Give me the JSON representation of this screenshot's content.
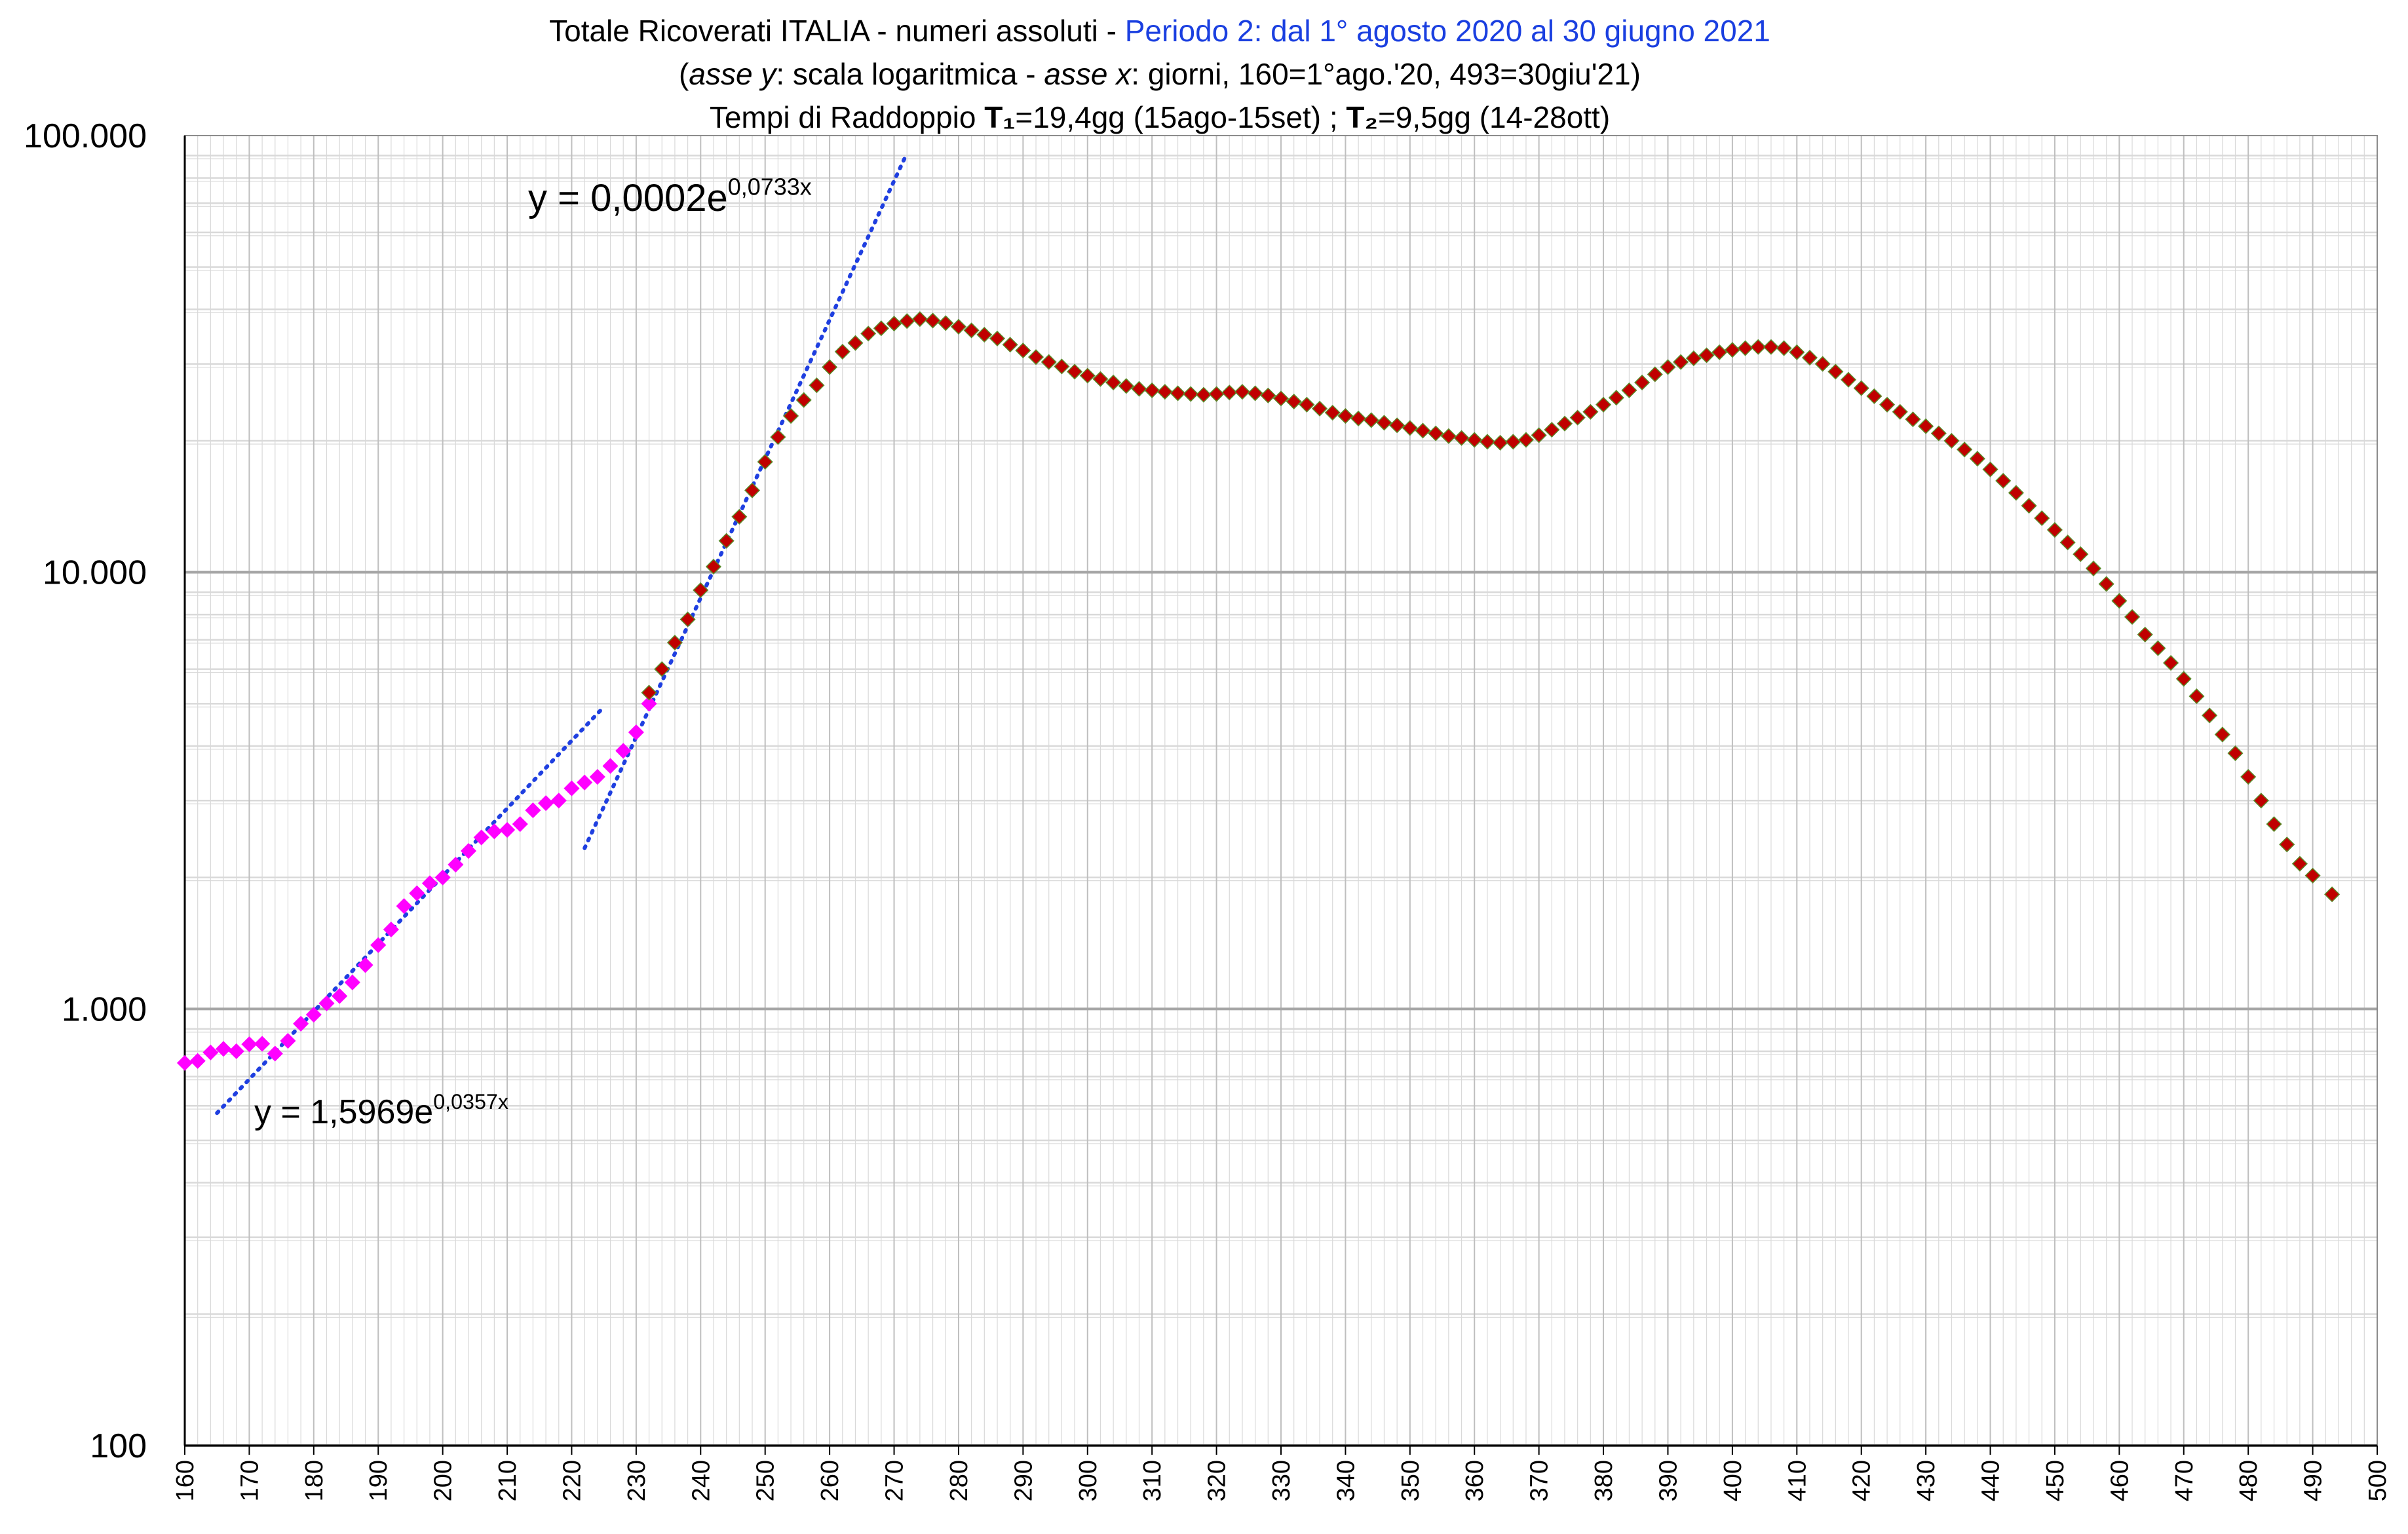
{
  "title": {
    "line1_main": "Totale Ricoverati ITALIA - numeri assoluti - ",
    "line1_blue": "Periodo 2: dal 1° agosto 2020 al 30 giugno 2021",
    "line2_open": "(",
    "line2_axis_y": "asse y",
    "line2_mid": ": scala logaritmica - ",
    "line2_axis_x": "asse x",
    "line2_end": ":  giorni, 160=1°ago.'20, 493=30giu'21)",
    "line3_start": "Tempi di Raddoppio  ",
    "line3_t1": "T₁",
    "line3_mid": "=19,4gg (15ago-15set)  ;  ",
    "line3_t2": "T₂",
    "line3_end": "=9,5gg (14-28ott)"
  },
  "colors": {
    "series_period_a": "#ff00ff",
    "series_period_b": "#c00000",
    "series_period_b_marker_edge": "#5a8a2a",
    "trendline": "#1f3fe0",
    "grid_major": "#a6a6a6",
    "grid_minor": "#d9d9d9"
  },
  "chart_data": {
    "type": "scatter",
    "xlabel": "",
    "ylabel": "",
    "y_scale": "log",
    "xlim": [
      160,
      500
    ],
    "ylim": [
      100,
      100000
    ],
    "x_ticks": [
      160,
      170,
      180,
      190,
      200,
      210,
      220,
      230,
      240,
      250,
      260,
      270,
      280,
      290,
      300,
      310,
      320,
      330,
      340,
      350,
      360,
      370,
      380,
      390,
      400,
      410,
      420,
      430,
      440,
      450,
      460,
      470,
      480,
      490,
      500
    ],
    "y_tick_labels": [
      "100",
      "1.000",
      "10.000",
      "100.000"
    ],
    "y_tick_values": [
      100,
      1000,
      10000,
      100000
    ],
    "grid": true,
    "legend": "none",
    "series": [
      {
        "points": [
          [
            160,
            752
          ],
          [
            162,
            760
          ],
          [
            164,
            795
          ],
          [
            166,
            810
          ],
          [
            168,
            800
          ],
          [
            170,
            830
          ],
          [
            172,
            832
          ],
          [
            174,
            790
          ],
          [
            176,
            845
          ],
          [
            178,
            925
          ],
          [
            180,
            970
          ],
          [
            182,
            1030
          ],
          [
            184,
            1070
          ],
          [
            186,
            1150
          ],
          [
            188,
            1260
          ],
          [
            190,
            1400
          ],
          [
            192,
            1520
          ],
          [
            194,
            1720
          ],
          [
            196,
            1840
          ],
          [
            198,
            1940
          ],
          [
            200,
            2000
          ],
          [
            202,
            2140
          ],
          [
            204,
            2300
          ],
          [
            206,
            2470
          ],
          [
            208,
            2550
          ],
          [
            210,
            2570
          ],
          [
            212,
            2650
          ],
          [
            214,
            2850
          ],
          [
            216,
            2960
          ],
          [
            218,
            3000
          ],
          [
            220,
            3200
          ],
          [
            222,
            3300
          ],
          [
            224,
            3400
          ],
          [
            226,
            3600
          ],
          [
            228,
            3900
          ],
          [
            230,
            4300
          ],
          [
            232,
            5000
          ]
        ]
      },
      {
        "points": [
          [
            232,
            5300
          ],
          [
            234,
            6000
          ],
          [
            236,
            6900
          ],
          [
            238,
            7800
          ],
          [
            240,
            9100
          ],
          [
            242,
            10300
          ],
          [
            244,
            11800
          ],
          [
            246,
            13400
          ],
          [
            248,
            15400
          ],
          [
            250,
            17900
          ],
          [
            252,
            20400
          ],
          [
            254,
            22800
          ],
          [
            256,
            24800
          ],
          [
            258,
            26800
          ],
          [
            260,
            29500
          ],
          [
            262,
            32000
          ],
          [
            264,
            33500
          ],
          [
            266,
            35200
          ],
          [
            268,
            36200
          ],
          [
            270,
            37100
          ],
          [
            272,
            37600
          ],
          [
            274,
            38000
          ],
          [
            276,
            37700
          ],
          [
            278,
            37200
          ],
          [
            280,
            36500
          ],
          [
            282,
            35800
          ],
          [
            284,
            35000
          ],
          [
            286,
            34300
          ],
          [
            288,
            33200
          ],
          [
            290,
            32200
          ],
          [
            292,
            31100
          ],
          [
            294,
            30300
          ],
          [
            296,
            29600
          ],
          [
            298,
            28800
          ],
          [
            300,
            28200
          ],
          [
            302,
            27700
          ],
          [
            304,
            27200
          ],
          [
            306,
            26700
          ],
          [
            308,
            26300
          ],
          [
            310,
            26100
          ],
          [
            312,
            25900
          ],
          [
            314,
            25700
          ],
          [
            316,
            25600
          ],
          [
            318,
            25500
          ],
          [
            320,
            25600
          ],
          [
            322,
            25800
          ],
          [
            324,
            25900
          ],
          [
            326,
            25700
          ],
          [
            328,
            25400
          ],
          [
            330,
            25000
          ],
          [
            332,
            24600
          ],
          [
            334,
            24200
          ],
          [
            336,
            23700
          ],
          [
            338,
            23200
          ],
          [
            340,
            22800
          ],
          [
            342,
            22500
          ],
          [
            344,
            22300
          ],
          [
            346,
            22000
          ],
          [
            348,
            21700
          ],
          [
            350,
            21400
          ],
          [
            352,
            21100
          ],
          [
            354,
            20800
          ],
          [
            356,
            20500
          ],
          [
            358,
            20300
          ],
          [
            360,
            20100
          ],
          [
            362,
            19900
          ],
          [
            364,
            19800
          ],
          [
            366,
            19900
          ],
          [
            368,
            20100
          ],
          [
            370,
            20600
          ],
          [
            372,
            21200
          ],
          [
            374,
            21900
          ],
          [
            376,
            22600
          ],
          [
            378,
            23300
          ],
          [
            380,
            24200
          ],
          [
            382,
            25100
          ],
          [
            384,
            26100
          ],
          [
            386,
            27200
          ],
          [
            388,
            28400
          ],
          [
            390,
            29500
          ],
          [
            392,
            30300
          ],
          [
            394,
            30900
          ],
          [
            396,
            31400
          ],
          [
            398,
            31900
          ],
          [
            400,
            32300
          ],
          [
            402,
            32600
          ],
          [
            404,
            32800
          ],
          [
            406,
            32800
          ],
          [
            408,
            32600
          ],
          [
            410,
            31900
          ],
          [
            412,
            31000
          ],
          [
            414,
            30000
          ],
          [
            416,
            28800
          ],
          [
            418,
            27600
          ],
          [
            420,
            26400
          ],
          [
            422,
            25300
          ],
          [
            424,
            24200
          ],
          [
            426,
            23300
          ],
          [
            428,
            22400
          ],
          [
            430,
            21600
          ],
          [
            432,
            20800
          ],
          [
            434,
            20000
          ],
          [
            436,
            19100
          ],
          [
            438,
            18200
          ],
          [
            440,
            17200
          ],
          [
            442,
            16200
          ],
          [
            444,
            15200
          ],
          [
            446,
            14200
          ],
          [
            448,
            13300
          ],
          [
            450,
            12500
          ],
          [
            452,
            11700
          ],
          [
            454,
            11000
          ],
          [
            456,
            10200
          ],
          [
            458,
            9400
          ],
          [
            460,
            8600
          ],
          [
            462,
            7900
          ],
          [
            464,
            7200
          ],
          [
            466,
            6700
          ],
          [
            468,
            6200
          ],
          [
            470,
            5700
          ],
          [
            472,
            5200
          ],
          [
            474,
            4700
          ],
          [
            476,
            4250
          ],
          [
            478,
            3850
          ],
          [
            480,
            3400
          ],
          [
            482,
            3000
          ],
          [
            484,
            2650
          ],
          [
            486,
            2380
          ],
          [
            488,
            2150
          ],
          [
            490,
            2020
          ],
          [
            493,
            1830
          ]
        ]
      }
    ],
    "trendlines": [
      {
        "a": 1.5969,
        "b": 0.0357,
        "x_range": [
          165,
          225
        ],
        "equation_main": "y = 1,5969e",
        "equation_exp": "0,0357x"
      },
      {
        "a": 0.0002,
        "b": 0.0733,
        "x_range": [
          222,
          272
        ],
        "equation_main": "y = 0,0002e",
        "equation_exp": "0,0733x"
      }
    ]
  }
}
